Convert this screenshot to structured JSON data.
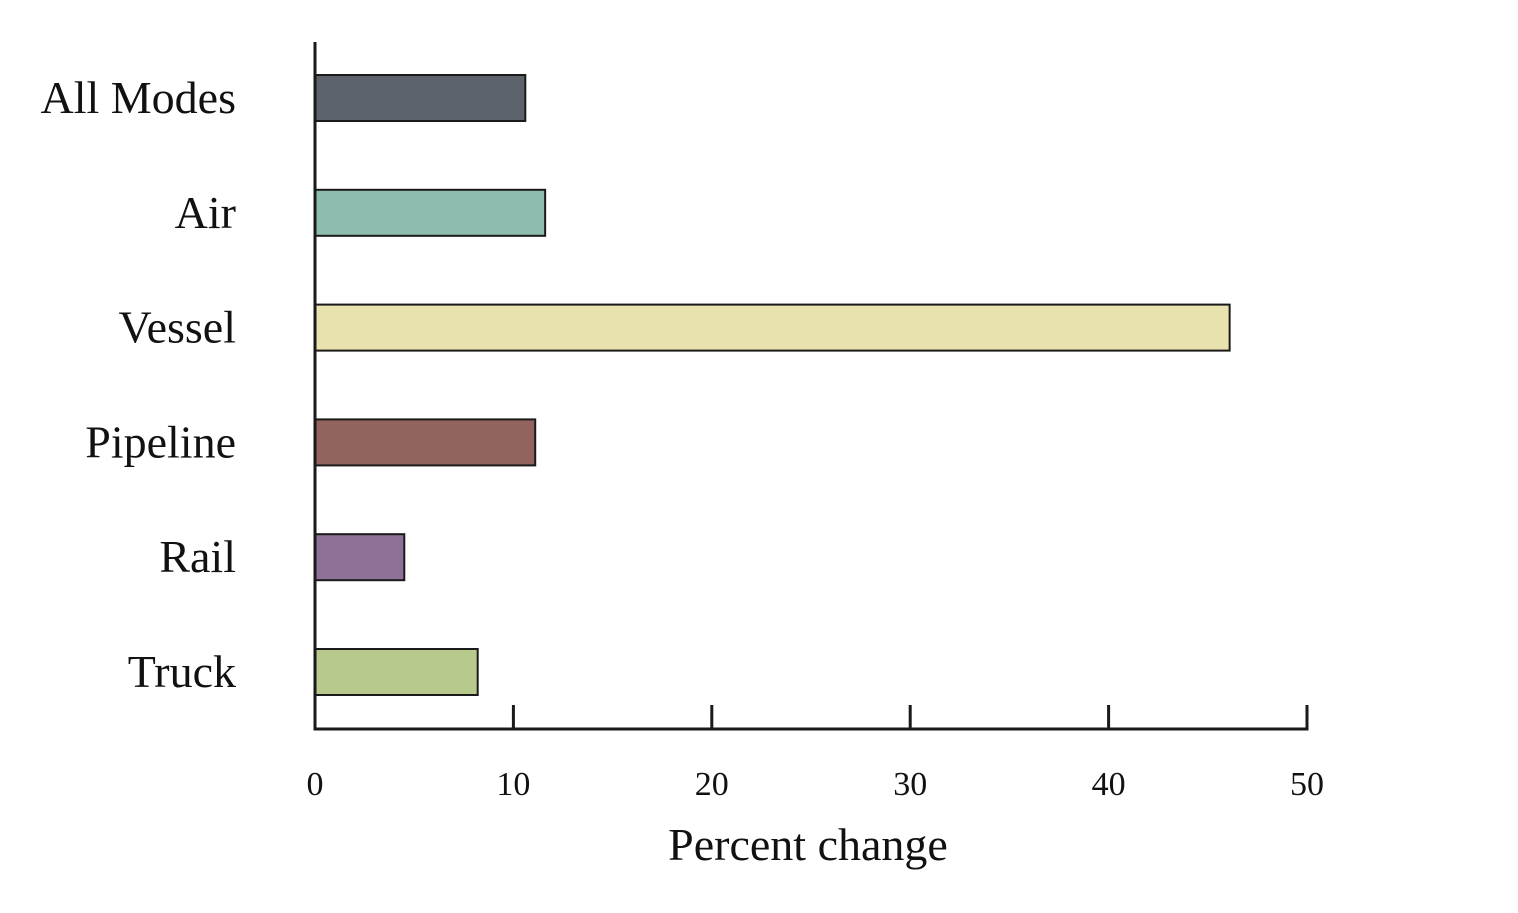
{
  "chart_data": {
    "type": "bar",
    "orientation": "horizontal",
    "categories": [
      "All Modes",
      "Air",
      "Vessel",
      "Pipeline",
      "Rail",
      "Truck"
    ],
    "values": [
      10.6,
      11.6,
      46.1,
      11.1,
      4.5,
      8.2
    ],
    "colors": [
      "#5d636b",
      "#8fbcb1",
      "#e8e2ae",
      "#93645e",
      "#8f7096",
      "#b7c98c"
    ],
    "xlabel": "Percent change",
    "ylabel": "",
    "xlim": [
      0,
      50
    ],
    "xticks": [
      0,
      10,
      20,
      30,
      40,
      50
    ],
    "xtick_labels": [
      "0",
      "10",
      "20",
      "30",
      "40",
      "50"
    ],
    "grid": false,
    "legend": "none"
  }
}
